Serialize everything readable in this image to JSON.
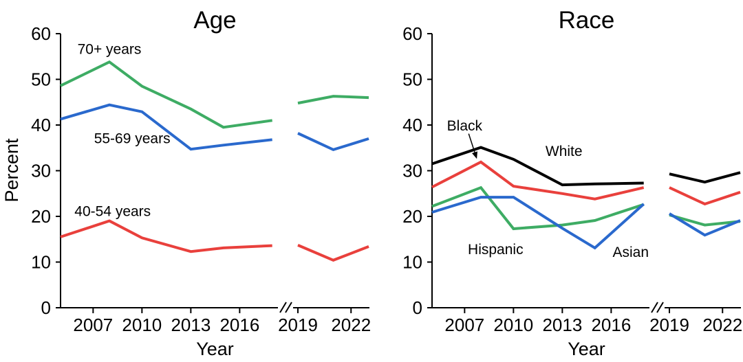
{
  "page": {
    "background": "#ffffff"
  },
  "chart_data": [
    {
      "type": "line",
      "title": "Age",
      "xlabel": "Year",
      "ylabel": "Percent",
      "ylim": [
        0,
        60
      ],
      "y_ticks": [
        0,
        10,
        20,
        30,
        40,
        50,
        60
      ],
      "x_tick_years": [
        2007,
        2010,
        2013,
        2016,
        2019,
        2022
      ],
      "x_axis_break_after_year": 2018,
      "x_years": [
        2005,
        2008,
        2010,
        2013,
        2015,
        2018,
        2019,
        2021,
        2023
      ],
      "grid": false,
      "legend": "inline-labels",
      "axis_color": "#000000",
      "series": [
        {
          "name": "70+ years",
          "color": "#3eac64",
          "values": [
            48.6,
            53.8,
            48.5,
            43.5,
            39.5,
            41.0,
            44.8,
            46.3,
            46.0
          ]
        },
        {
          "name": "55-69 years",
          "color": "#2a69cd",
          "values": [
            41.3,
            44.4,
            42.9,
            34.7,
            35.6,
            36.8,
            38.2,
            34.6,
            37.0
          ]
        },
        {
          "name": "40-54 years",
          "color": "#e9403c",
          "values": [
            15.5,
            19.0,
            15.3,
            12.3,
            13.1,
            13.6,
            13.7,
            10.4,
            13.4
          ]
        }
      ],
      "annotations": [
        {
          "text": "70+ years",
          "year": 2008.0,
          "value": 56.8
        },
        {
          "text": "55-69 years",
          "year": 2009.4,
          "value": 37.2
        },
        {
          "text": "40-54 years",
          "year": 2008.2,
          "value": 21.3
        }
      ]
    },
    {
      "type": "line",
      "title": "Race",
      "xlabel": "Year",
      "ylabel": "",
      "ylim": [
        0,
        60
      ],
      "y_ticks": [
        0,
        10,
        20,
        30,
        40,
        50,
        60
      ],
      "x_tick_years": [
        2007,
        2010,
        2013,
        2016,
        2019,
        2022
      ],
      "x_axis_break_after_year": 2018,
      "x_years": [
        2005,
        2008,
        2010,
        2013,
        2015,
        2018,
        2019,
        2021,
        2023
      ],
      "grid": false,
      "legend": "inline-labels",
      "axis_color": "#000000",
      "series": [
        {
          "name": "Hispanic",
          "color": "#3eac64",
          "values": [
            22.2,
            26.3,
            17.3,
            18.1,
            19.1,
            22.6,
            20.3,
            18.1,
            18.9
          ]
        },
        {
          "name": "Asian",
          "color": "#2a69cd",
          "values": [
            20.9,
            24.2,
            24.2,
            17.4,
            13.1,
            22.7,
            20.6,
            15.9,
            19.1
          ]
        },
        {
          "name": "Black",
          "color": "#e9403c",
          "values": [
            26.4,
            31.9,
            26.6,
            25.0,
            23.8,
            26.3,
            26.3,
            22.7,
            25.3
          ]
        },
        {
          "name": "White",
          "color": "#000000",
          "values": [
            31.5,
            35.1,
            32.5,
            26.9,
            27.1,
            27.3,
            29.3,
            27.5,
            29.6
          ]
        }
      ],
      "annotations": [
        {
          "text": "Black",
          "year": 2007.0,
          "value": 40.0
        },
        {
          "text": "White",
          "year": 2013.1,
          "value": 34.4
        },
        {
          "text": "Hispanic",
          "year": 2008.9,
          "value": 12.9
        },
        {
          "text": "Asian",
          "year": 2017.2,
          "value": 12.3
        }
      ],
      "arrow": {
        "from_year": 2007.25,
        "from_value": 38.1,
        "to_year": 2007.75,
        "to_value": 32.6
      }
    }
  ]
}
